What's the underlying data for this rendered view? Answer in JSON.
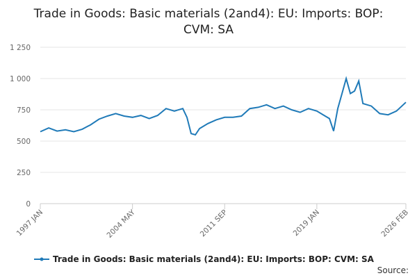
{
  "chart_data": {
    "type": "line",
    "title_lines": [
      "Trade in Goods: Basic materials (2and4): EU: Imports: BOP:",
      "CVM: SA"
    ],
    "xlabel": "",
    "ylabel": "",
    "x_ticks": [
      "1997 JAN",
      "2004 MAY",
      "2011 SEP",
      "2019 JAN",
      "2026 FEB"
    ],
    "y_ticks": [
      "0",
      "250",
      "500",
      "750",
      "1 000",
      "1 250"
    ],
    "ylim": [
      0,
      1250
    ],
    "grid": true,
    "legend_position": "bottom",
    "source_label": "Source:",
    "x_start": "1997 JAN",
    "x_end": "2026 FEB",
    "series": [
      {
        "name": "Trade in Goods: Basic materials (2and4): EU: Imports: BOP: CVM: SA",
        "color": "#1f7ab8",
        "x": [
          "1997 JAN",
          "1997 SEP",
          "1998 MAY",
          "1999 JAN",
          "1999 SEP",
          "2000 MAY",
          "2001 JAN",
          "2001 SEP",
          "2002 MAY",
          "2003 JAN",
          "2003 SEP",
          "2004 MAY",
          "2005 JAN",
          "2005 SEP",
          "2006 MAY",
          "2007 JAN",
          "2007 SEP",
          "2008 MAY",
          "2008 SEP",
          "2009 JAN",
          "2009 MAY",
          "2009 SEP",
          "2010 MAY",
          "2011 JAN",
          "2011 SEP",
          "2012 MAY",
          "2013 JAN",
          "2013 SEP",
          "2014 MAY",
          "2015 JAN",
          "2015 SEP",
          "2016 MAY",
          "2017 JAN",
          "2017 SEP",
          "2018 MAY",
          "2019 JAN",
          "2019 SEP",
          "2020 JAN",
          "2020 MAY",
          "2020 SEP",
          "2021 JAN",
          "2021 MAY",
          "2021 SEP",
          "2022 JAN",
          "2022 MAY",
          "2022 SEP",
          "2023 MAY",
          "2024 JAN",
          "2024 SEP",
          "2025 MAY",
          "2026 FEB"
        ],
        "values": [
          575,
          605,
          580,
          590,
          575,
          595,
          630,
          675,
          700,
          720,
          700,
          690,
          705,
          680,
          705,
          760,
          740,
          760,
          690,
          560,
          550,
          600,
          640,
          670,
          690,
          690,
          700,
          760,
          770,
          790,
          760,
          780,
          750,
          730,
          760,
          740,
          700,
          680,
          580,
          760,
          880,
          1000,
          880,
          900,
          980,
          800,
          780,
          720,
          710,
          740,
          810
        ]
      }
    ]
  }
}
